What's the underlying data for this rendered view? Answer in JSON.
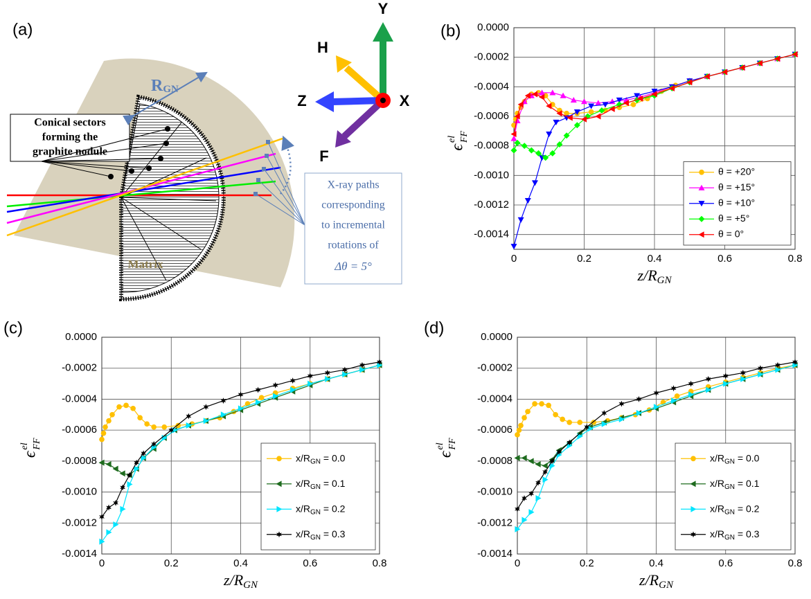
{
  "diagram": {
    "panel_label": "(a)",
    "sectors_label": [
      "Conical sectors",
      "forming the",
      "graphite nodule"
    ],
    "radius_label": {
      "base": "R",
      "sub": "GN"
    },
    "matrix_label": "Matrix",
    "xray_label": [
      "X-ray paths",
      "corresponding",
      "to incremental",
      "rotations of",
      "Δθ = 5°"
    ],
    "axes": {
      "y": "Y",
      "h": "H",
      "z": "Z",
      "x": "X",
      "f": "F"
    }
  },
  "chart_data": [
    {
      "type": "line",
      "panel_label": "(b)",
      "xlabel": {
        "base": "z/R",
        "sub": "GN"
      },
      "ylabel": {
        "base": "ϵ",
        "sup": "el",
        "sub": "FF"
      },
      "xlim": [
        0,
        0.8
      ],
      "xticks": [
        0,
        0.2,
        0.4,
        0.6,
        0.8
      ],
      "ylim": [
        -0.0015,
        0
      ],
      "yticks": [
        {
          "value": 0,
          "label": "0.0000"
        },
        {
          "value": -0.0002,
          "label": "-0.0002"
        },
        {
          "value": -0.0004,
          "label": "-0.0004"
        },
        {
          "value": -0.0006,
          "label": "-0.0006"
        },
        {
          "value": -0.0008,
          "label": "-0.0008"
        },
        {
          "value": -0.001,
          "label": "-0.0010"
        },
        {
          "value": -0.0012,
          "label": "-0.0012"
        },
        {
          "value": -0.0014,
          "label": "-0.0014"
        }
      ],
      "grid": true,
      "legend": "lower right",
      "series": [
        {
          "name": "θ = +20°",
          "color": "#ffc000",
          "marker": "circle",
          "x": [
            0,
            0.005,
            0.01,
            0.02,
            0.03,
            0.05,
            0.07,
            0.09,
            0.11,
            0.13,
            0.15,
            0.18,
            0.22,
            0.26,
            0.3,
            0.34,
            0.38,
            0.42,
            0.46,
            0.5,
            0.55,
            0.6,
            0.65,
            0.7,
            0.75,
            0.8
          ],
          "values": [
            -0.00066,
            -0.00062,
            -0.00058,
            -0.00054,
            -0.0005,
            -0.00045,
            -0.00044,
            -0.00046,
            -0.00052,
            -0.00056,
            -0.00058,
            -0.00058,
            -0.00057,
            -0.00056,
            -0.00054,
            -0.00052,
            -0.00048,
            -0.00043,
            -0.00039,
            -0.00036,
            -0.00033,
            -0.0003,
            -0.00027,
            -0.00024,
            -0.00021,
            -0.00018
          ]
        },
        {
          "name": "θ = +15°",
          "color": "#ff00ff",
          "marker": "triangle-up",
          "x": [
            0,
            0.01,
            0.03,
            0.05,
            0.08,
            0.11,
            0.14,
            0.17,
            0.2,
            0.24,
            0.28,
            0.32,
            0.36,
            0.4,
            0.45,
            0.5,
            0.55,
            0.6,
            0.65,
            0.7,
            0.75,
            0.8
          ],
          "values": [
            -0.00075,
            -0.00063,
            -0.0005,
            -0.00046,
            -0.00044,
            -0.00044,
            -0.00046,
            -0.00049,
            -0.0005,
            -0.00051,
            -0.0005,
            -0.00049,
            -0.00047,
            -0.00044,
            -0.0004,
            -0.00036,
            -0.00033,
            -0.0003,
            -0.00027,
            -0.00024,
            -0.00021,
            -0.00018
          ]
        },
        {
          "name": "θ = +10°",
          "color": "#0000ff",
          "marker": "triangle-down",
          "x": [
            0,
            0.02,
            0.04,
            0.06,
            0.08,
            0.1,
            0.12,
            0.15,
            0.18,
            0.22,
            0.26,
            0.3,
            0.35,
            0.4,
            0.45,
            0.5,
            0.55,
            0.6,
            0.65,
            0.7,
            0.75,
            0.8
          ],
          "values": [
            -0.00148,
            -0.0013,
            -0.00117,
            -0.00105,
            -0.00088,
            -0.00072,
            -0.00064,
            -0.00061,
            -0.00057,
            -0.00053,
            -0.00052,
            -0.00049,
            -0.00046,
            -0.00043,
            -0.0004,
            -0.00036,
            -0.00033,
            -0.0003,
            -0.00027,
            -0.00024,
            -0.00021,
            -0.00018
          ]
        },
        {
          "name": "θ = +5°",
          "color": "#00ff00",
          "marker": "diamond",
          "x": [
            0,
            0.01,
            0.03,
            0.05,
            0.07,
            0.09,
            0.11,
            0.13,
            0.15,
            0.18,
            0.21,
            0.25,
            0.3,
            0.35,
            0.4,
            0.45,
            0.5,
            0.55,
            0.6,
            0.65,
            0.7,
            0.75,
            0.8
          ],
          "values": [
            -0.00083,
            -0.00078,
            -0.0008,
            -0.00083,
            -0.00085,
            -0.00088,
            -0.00085,
            -0.00079,
            -0.00073,
            -0.00066,
            -0.0006,
            -0.00056,
            -0.00052,
            -0.00049,
            -0.00046,
            -0.00041,
            -0.00037,
            -0.00033,
            -0.0003,
            -0.00027,
            -0.00024,
            -0.00021,
            -0.00018
          ]
        },
        {
          "name": "θ = 0°",
          "color": "#ff0000",
          "marker": "triangle-left",
          "x": [
            0,
            0.01,
            0.02,
            0.04,
            0.06,
            0.08,
            0.1,
            0.13,
            0.16,
            0.2,
            0.24,
            0.28,
            0.32,
            0.36,
            0.4,
            0.45,
            0.5,
            0.55,
            0.6,
            0.65,
            0.7,
            0.75,
            0.8
          ],
          "values": [
            -0.00072,
            -0.0006,
            -0.00052,
            -0.00046,
            -0.00045,
            -0.00047,
            -0.00053,
            -0.00058,
            -0.00061,
            -0.00062,
            -0.0006,
            -0.00055,
            -0.00051,
            -0.00048,
            -0.00045,
            -0.00041,
            -0.00037,
            -0.00033,
            -0.0003,
            -0.00027,
            -0.00024,
            -0.00021,
            -0.00018
          ]
        }
      ]
    },
    {
      "type": "line",
      "panel_label": "(c)",
      "xlabel": {
        "base": "z/R",
        "sub": "GN"
      },
      "ylabel": {
        "base": "ϵ",
        "sup": "el",
        "sub": "FF"
      },
      "xlim": [
        0,
        0.8
      ],
      "xticks": [
        0,
        0.2,
        0.4,
        0.6,
        0.8
      ],
      "ylim": [
        -0.0014,
        0
      ],
      "yticks": [
        {
          "value": 0,
          "label": "0.0000"
        },
        {
          "value": -0.0002,
          "label": "-0.0002"
        },
        {
          "value": -0.0004,
          "label": "-0.0004"
        },
        {
          "value": -0.0006,
          "label": "-0.0006"
        },
        {
          "value": -0.0008,
          "label": "-0.0008"
        },
        {
          "value": -0.001,
          "label": "-0.0010"
        },
        {
          "value": -0.0012,
          "label": "-0.0012"
        },
        {
          "value": -0.0014,
          "label": "-0.0014"
        }
      ],
      "grid": true,
      "legend": "lower right",
      "series": [
        {
          "name": [
            "x/R",
            "GN",
            " = 0.0"
          ],
          "color": "#ffc000",
          "marker": "circle",
          "x": [
            0,
            0.005,
            0.01,
            0.02,
            0.03,
            0.05,
            0.07,
            0.09,
            0.11,
            0.13,
            0.15,
            0.18,
            0.22,
            0.26,
            0.3,
            0.34,
            0.38,
            0.42,
            0.46,
            0.5,
            0.55,
            0.6,
            0.65,
            0.7,
            0.75,
            0.8
          ],
          "values": [
            -0.00066,
            -0.00062,
            -0.00058,
            -0.00054,
            -0.0005,
            -0.00045,
            -0.00044,
            -0.00046,
            -0.00052,
            -0.00056,
            -0.00058,
            -0.00058,
            -0.00057,
            -0.00056,
            -0.00054,
            -0.00052,
            -0.00048,
            -0.00043,
            -0.00039,
            -0.00036,
            -0.00033,
            -0.0003,
            -0.00027,
            -0.00024,
            -0.00021,
            -0.00018
          ]
        },
        {
          "name": [
            "x/R",
            "GN",
            " = 0.1"
          ],
          "color": "#1e6b1e",
          "marker": "triangle-left",
          "x": [
            0,
            0.02,
            0.04,
            0.06,
            0.08,
            0.1,
            0.12,
            0.15,
            0.18,
            0.21,
            0.25,
            0.3,
            0.35,
            0.4,
            0.45,
            0.5,
            0.55,
            0.6,
            0.65,
            0.7,
            0.75,
            0.8
          ],
          "values": [
            -0.00081,
            -0.00082,
            -0.00085,
            -0.00088,
            -0.00089,
            -0.00085,
            -0.00078,
            -0.00072,
            -0.00065,
            -0.0006,
            -0.00057,
            -0.00054,
            -0.00051,
            -0.00047,
            -0.00043,
            -0.00039,
            -0.00035,
            -0.00031,
            -0.00027,
            -0.00024,
            -0.00021,
            -0.00018
          ]
        },
        {
          "name": [
            "x/R",
            "GN",
            " = 0.2"
          ],
          "color": "#00e5ff",
          "marker": "triangle-right",
          "x": [
            0,
            0.02,
            0.04,
            0.06,
            0.08,
            0.1,
            0.12,
            0.15,
            0.18,
            0.21,
            0.25,
            0.3,
            0.35,
            0.4,
            0.45,
            0.5,
            0.55,
            0.6,
            0.65,
            0.7,
            0.75,
            0.8
          ],
          "values": [
            -0.00132,
            -0.00126,
            -0.00121,
            -0.00111,
            -0.00095,
            -0.00085,
            -0.00078,
            -0.00071,
            -0.00065,
            -0.0006,
            -0.00057,
            -0.00054,
            -0.0005,
            -0.00046,
            -0.00042,
            -0.00038,
            -0.00034,
            -0.0003,
            -0.00027,
            -0.00024,
            -0.00021,
            -0.00018
          ]
        },
        {
          "name": [
            "x/R",
            "GN",
            " = 0.3"
          ],
          "color": "#000000",
          "marker": "star",
          "x": [
            0,
            0.02,
            0.04,
            0.06,
            0.08,
            0.1,
            0.12,
            0.15,
            0.2,
            0.25,
            0.3,
            0.35,
            0.4,
            0.45,
            0.5,
            0.55,
            0.6,
            0.65,
            0.7,
            0.75,
            0.8
          ],
          "values": [
            -0.00116,
            -0.0011,
            -0.00107,
            -0.00097,
            -0.00089,
            -0.00081,
            -0.00075,
            -0.00069,
            -0.0006,
            -0.00051,
            -0.00045,
            -0.00041,
            -0.00037,
            -0.00034,
            -0.00031,
            -0.00028,
            -0.00025,
            -0.00023,
            -0.00021,
            -0.00018,
            -0.00016
          ]
        }
      ]
    },
    {
      "type": "line",
      "panel_label": "(d)",
      "xlabel": {
        "base": "z/R",
        "sub": "GN"
      },
      "ylabel": {
        "base": "ϵ",
        "sup": "el",
        "sub": "FF"
      },
      "xlim": [
        0,
        0.8
      ],
      "xticks": [
        0,
        0.2,
        0.4,
        0.6,
        0.8
      ],
      "ylim": [
        -0.0014,
        0
      ],
      "yticks": [
        {
          "value": 0,
          "label": "0.0000"
        },
        {
          "value": -0.0002,
          "label": "-0.0002"
        },
        {
          "value": -0.0004,
          "label": "-0.0004"
        },
        {
          "value": -0.0006,
          "label": "-0.0006"
        },
        {
          "value": -0.0008,
          "label": "-0.0008"
        },
        {
          "value": -0.001,
          "label": "-0.0010"
        },
        {
          "value": -0.0012,
          "label": "-0.0012"
        },
        {
          "value": -0.0014,
          "label": "-0.0014"
        }
      ],
      "grid": true,
      "legend": "lower right",
      "series": [
        {
          "name": [
            "x/R",
            "GN",
            " = 0.0"
          ],
          "color": "#ffc000",
          "marker": "circle",
          "x": [
            0,
            0.005,
            0.01,
            0.02,
            0.03,
            0.05,
            0.07,
            0.09,
            0.11,
            0.13,
            0.15,
            0.18,
            0.22,
            0.26,
            0.3,
            0.34,
            0.38,
            0.42,
            0.46,
            0.5,
            0.55,
            0.6,
            0.65,
            0.7,
            0.75,
            0.8
          ],
          "values": [
            -0.00063,
            -0.0006,
            -0.00057,
            -0.00052,
            -0.00048,
            -0.00043,
            -0.00043,
            -0.00044,
            -0.0005,
            -0.00053,
            -0.00055,
            -0.00055,
            -0.00055,
            -0.00054,
            -0.00052,
            -0.0005,
            -0.00047,
            -0.00042,
            -0.00038,
            -0.00035,
            -0.00032,
            -0.00029,
            -0.00026,
            -0.00023,
            -0.0002,
            -0.00018
          ]
        },
        {
          "name": [
            "x/R",
            "GN",
            " = 0.1"
          ],
          "color": "#1e6b1e",
          "marker": "triangle-left",
          "x": [
            0,
            0.02,
            0.04,
            0.06,
            0.08,
            0.1,
            0.12,
            0.15,
            0.18,
            0.21,
            0.25,
            0.3,
            0.35,
            0.4,
            0.45,
            0.5,
            0.55,
            0.6,
            0.65,
            0.7,
            0.75,
            0.8
          ],
          "values": [
            -0.00078,
            -0.00078,
            -0.0008,
            -0.00082,
            -0.00083,
            -0.00079,
            -0.00073,
            -0.00068,
            -0.00062,
            -0.00058,
            -0.00055,
            -0.00052,
            -0.00049,
            -0.00046,
            -0.00042,
            -0.00038,
            -0.00034,
            -0.0003,
            -0.00027,
            -0.00024,
            -0.00021,
            -0.00018
          ]
        },
        {
          "name": [
            "x/R",
            "GN",
            " = 0.2"
          ],
          "color": "#00e5ff",
          "marker": "triangle-right",
          "x": [
            0,
            0.02,
            0.04,
            0.06,
            0.08,
            0.1,
            0.12,
            0.15,
            0.18,
            0.21,
            0.25,
            0.3,
            0.35,
            0.4,
            0.45,
            0.5,
            0.55,
            0.6,
            0.65,
            0.7,
            0.75,
            0.8
          ],
          "values": [
            -0.00124,
            -0.00118,
            -0.00113,
            -0.00104,
            -0.00092,
            -0.00083,
            -0.00076,
            -0.0007,
            -0.00064,
            -0.00059,
            -0.00056,
            -0.00053,
            -0.00049,
            -0.00045,
            -0.00041,
            -0.00037,
            -0.00034,
            -0.0003,
            -0.00027,
            -0.00024,
            -0.00021,
            -0.00018
          ]
        },
        {
          "name": [
            "x/R",
            "GN",
            " = 0.3"
          ],
          "color": "#000000",
          "marker": "star",
          "x": [
            0,
            0.02,
            0.04,
            0.06,
            0.08,
            0.1,
            0.12,
            0.15,
            0.2,
            0.25,
            0.3,
            0.35,
            0.4,
            0.45,
            0.5,
            0.55,
            0.6,
            0.65,
            0.7,
            0.75,
            0.8
          ],
          "values": [
            -0.00111,
            -0.00104,
            -0.00101,
            -0.00094,
            -0.00087,
            -0.0008,
            -0.00074,
            -0.00068,
            -0.00058,
            -0.00049,
            -0.00043,
            -0.0004,
            -0.00036,
            -0.00033,
            -0.0003,
            -0.00027,
            -0.00025,
            -0.00023,
            -0.0002,
            -0.00018,
            -0.00016
          ]
        }
      ]
    }
  ]
}
